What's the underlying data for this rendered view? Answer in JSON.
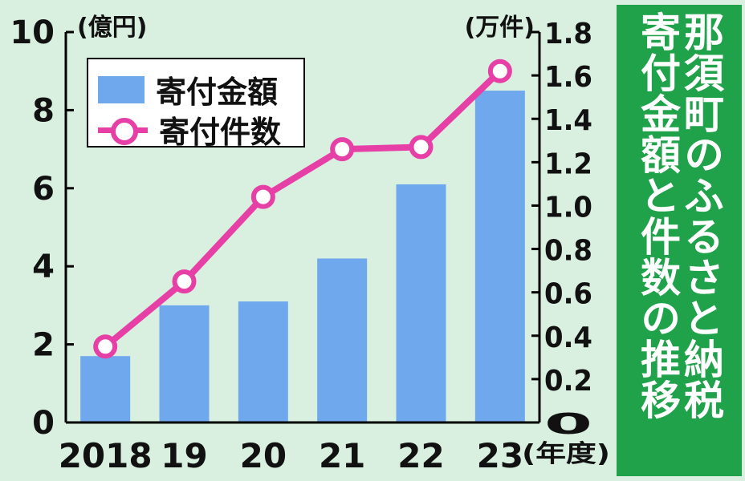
{
  "title_lines": [
    "那須町のふるさと納税",
    "寄付金額と件数の推移"
  ],
  "colors": {
    "bar": "#6fa8ec",
    "line": "#e63fa6",
    "panel": "#1fa24a",
    "background": "#d9f0e0"
  },
  "chart_data": {
    "type": "bar",
    "categories": [
      "2018",
      "19",
      "20",
      "21",
      "22",
      "23"
    ],
    "x_unit_label": "(年度)",
    "series": [
      {
        "name": "寄付金額",
        "type": "bar",
        "axis": "left",
        "values": [
          1.7,
          3.0,
          3.1,
          4.2,
          6.1,
          8.5
        ]
      },
      {
        "name": "寄付件数",
        "type": "line",
        "axis": "right",
        "values": [
          0.35,
          0.65,
          1.04,
          1.26,
          1.27,
          1.62
        ]
      }
    ],
    "y_left": {
      "unit_label": "(億円)",
      "range": [
        0,
        10
      ],
      "ticks": [
        "0",
        "2",
        "4",
        "6",
        "8",
        "10"
      ]
    },
    "y_right": {
      "unit_label": "(万件)",
      "range": [
        0,
        1.8
      ],
      "ticks": [
        "0",
        "0.2",
        "0.4",
        "0.6",
        "0.8",
        "1.0",
        "1.2",
        "1.4",
        "1.6",
        "1.8"
      ]
    },
    "legend_position": "top-left",
    "grid": false
  }
}
